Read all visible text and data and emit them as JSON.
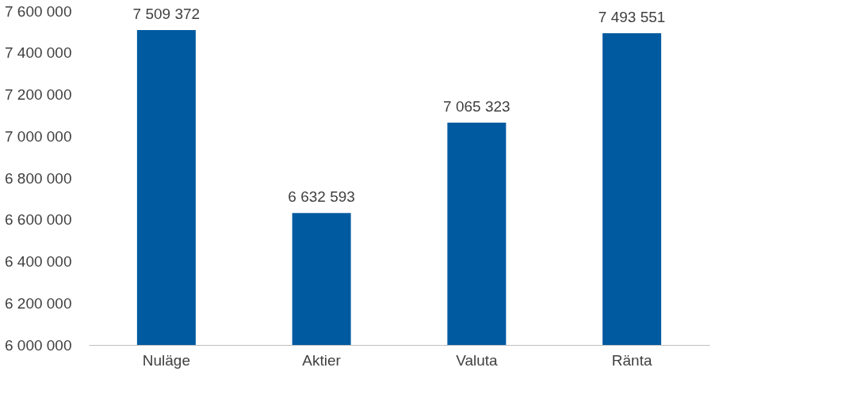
{
  "chart_data": {
    "type": "bar",
    "categories": [
      "Nuläge",
      "Aktier",
      "Valuta",
      "Ränta"
    ],
    "values": [
      7509372,
      6632593,
      7065323,
      7493551
    ],
    "value_labels": [
      "7 509 372",
      "6 632 593",
      "7 065 323",
      "7 493 551"
    ],
    "color": "#005aa0",
    "ylim": [
      6000000,
      7600000
    ],
    "yticks": [
      {
        "value": 6000000,
        "label": "6 000 000"
      },
      {
        "value": 6200000,
        "label": "6 200 000"
      },
      {
        "value": 6400000,
        "label": "6 400 000"
      },
      {
        "value": 6600000,
        "label": "6 600 000"
      },
      {
        "value": 6800000,
        "label": "6 800 000"
      },
      {
        "value": 7000000,
        "label": "7 000 000"
      },
      {
        "value": 7200000,
        "label": "7 200 000"
      },
      {
        "value": 7400000,
        "label": "7 400 000"
      },
      {
        "value": 7600000,
        "label": "7 600 000"
      }
    ],
    "grid": false
  }
}
